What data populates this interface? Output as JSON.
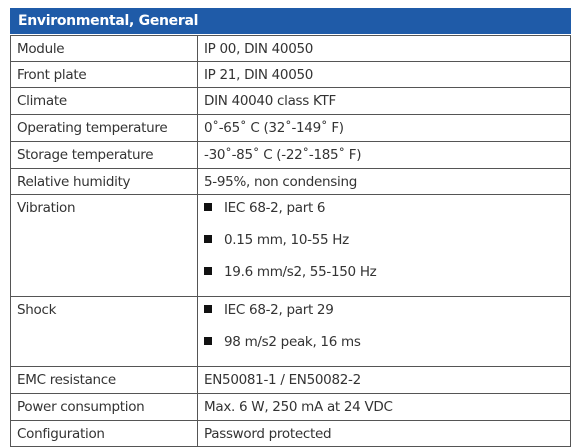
{
  "header": {
    "title": "Environmental, General"
  },
  "table": {
    "rows": [
      {
        "label": "Module",
        "value": "IP 00, DIN 40050"
      },
      {
        "label": "Front plate",
        "value": "IP 21, DIN 40050"
      },
      {
        "label": "Climate",
        "value": "DIN 40040 class KTF"
      },
      {
        "label": "Operating temperature",
        "value": "0˚-65˚ C (32˚-149˚ F)"
      },
      {
        "label": "Storage temperature",
        "value": "-30˚-85˚ C (-22˚-185˚ F)"
      },
      {
        "label": "Relative humidity",
        "value": "5-95%, non condensing"
      },
      {
        "label": "Vibration",
        "items": [
          "IEC 68-2, part 6",
          "0.15 mm, 10-55 Hz",
          "19.6 mm/s2, 55-150 Hz"
        ]
      },
      {
        "label": "Shock",
        "items": [
          "IEC 68-2, part 29",
          "98 m/s2 peak, 16 ms"
        ]
      },
      {
        "label": "EMC resistance",
        "value": "EN50081-1 / EN50082-2"
      },
      {
        "label": "Power consumption",
        "value": "Max. 6 W, 250 mA at 24 VDC"
      },
      {
        "label": "Configuration",
        "value": "Password protected"
      }
    ]
  }
}
